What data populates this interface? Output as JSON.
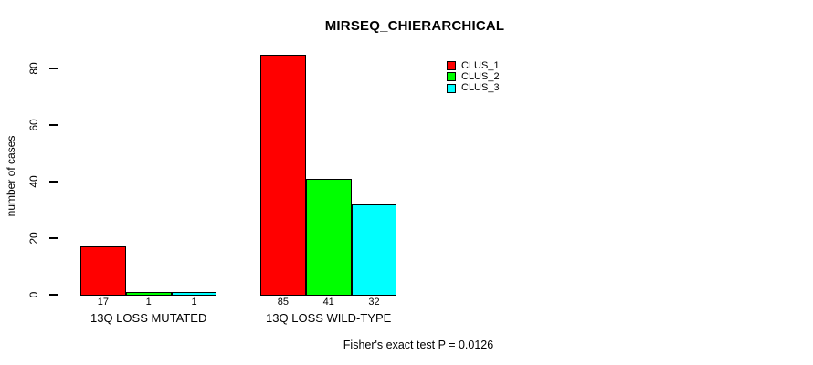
{
  "page": {
    "background": "#FFFFFF",
    "text_color": "#000000",
    "axis_color": "#000000"
  },
  "chart_data": {
    "type": "bar",
    "title": "MIRSEQ_CHIERARCHICAL",
    "ylabel": "number of cases",
    "xlabel": "",
    "categories": [
      "13Q LOSS MUTATED",
      "13Q LOSS WILD-TYPE"
    ],
    "series": [
      {
        "name": "CLUS_1",
        "color": "#FF0000",
        "values": [
          17,
          85
        ]
      },
      {
        "name": "CLUS_2",
        "color": "#00FF00",
        "values": [
          1,
          41
        ]
      },
      {
        "name": "CLUS_3",
        "color": "#00FFFF",
        "values": [
          1,
          32
        ]
      }
    ],
    "bar_value_labels": [
      [
        17,
        1,
        1
      ],
      [
        85,
        41,
        32
      ]
    ],
    "yticks": [
      0,
      20,
      40,
      60,
      80
    ],
    "ylim": [
      0,
      88
    ],
    "grid": false,
    "bar_border_color": "#000000",
    "legend": {
      "position": "top-right",
      "entries": [
        "CLUS_1",
        "CLUS_2",
        "CLUS_3"
      ]
    },
    "annotation": "Fisher's exact test P = 0.0126"
  }
}
